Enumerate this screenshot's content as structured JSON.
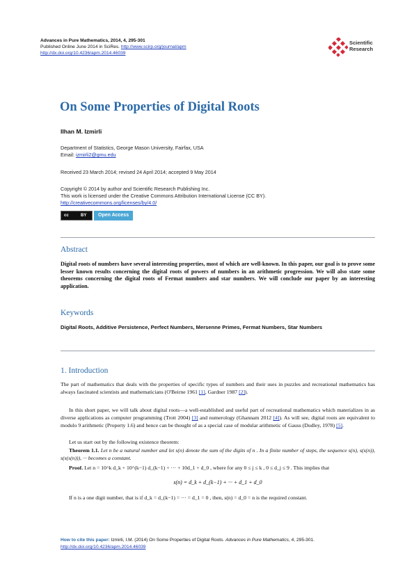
{
  "header": {
    "journal": "Advances in Pure Mathematics",
    "journal_ref": ", 2014, 4, 295-301",
    "published": "Published Online June 2014 in SciRes. ",
    "journal_url": "http://www.scirp.org/journal/apm",
    "doi": "http://dx.doi.org/10.4236/apm.2014.46039",
    "logo_text_1": "Scientific",
    "logo_text_2": "Research"
  },
  "article": {
    "title": "On Some Properties of Digital Roots",
    "author": "Ilhan M. Izmirli",
    "affiliation": "Department of Statistics, George Mason University, Fairfax, USA",
    "email_label": "Email: ",
    "email": "izmirli2@gmu.edu",
    "dates": "Received 23 March 2014; revised 24 April 2014; accepted 9 May 2014",
    "copyright_1": "Copyright © 2014 by author and Scientific Research Publishing Inc.",
    "copyright_2": "This work is licensed under the Creative Commons Attribution International License (CC BY).",
    "license_url": "http://creativecommons.org/licenses/by/4.0/",
    "cc_badge": "cc",
    "cc_by": "BY",
    "open_access": "Open Access"
  },
  "abstract": {
    "heading": "Abstract",
    "text": "Digital roots of numbers have several interesting properties, most of which are well-known. In this paper, our goal is to prove some lesser known results concerning the digital roots of powers of numbers in an arithmetic progression. We will also state some theorems concerning the digital roots of Fermat numbers and star numbers. We will conclude our paper by an interesting application."
  },
  "keywords": {
    "heading": "Keywords",
    "text": "Digital Roots, Additive Persistence, Perfect Numbers, Mersenne Primes, Fermat Numbers, Star Numbers"
  },
  "intro": {
    "heading": "1. Introduction",
    "p1a": "The part of mathematics that deals with the properties of specific types of numbers and their uses in puzzles and recreational mathematics has always fascinated scientists and mathematicians (O'Beirne 1961 ",
    "ref1": "[1]",
    "p1b": ", Gardner 1987 ",
    "ref2": "[2]",
    "p1c": ").",
    "p2a": "In this short paper, we will talk about digital roots—a well-established and useful part of recreational mathematics which materializes in as diverse applications as computer programming (Trott 2004) ",
    "ref3": "[3]",
    "p2b": " and numerology (Ghannam 2012 ",
    "ref4": "[4]",
    "p2c": "). As will see, digital roots are equivalent to modulo 9 arithmetic (Property 1.6) and hence can be thought of as a special case of modular arithmetic of Gauss (Dudley, 1978) ",
    "ref5": "[5]",
    "p2d": ".",
    "p3": "Let us start out by the following existence theorem:",
    "thm_label": "Theorem 1.1.",
    "thm_text": " Let  n  be a natural number and let  s(n)  denote the sum of the digits of  n . In a finite number of steps, the sequence  s(n), s(s(n)), s(s(s(n))), ···  becomes a constant.",
    "proof_label": "Proof.",
    "proof_text": " Let  n = 10^k d_k + 10^(k−1) d_(k−1) + ··· + 10d_1 + d_0 , where for any  0 ≤ j ≤ k ,  0 ≤ d_j ≤ 9 . This implies that",
    "equation": "s(n) = d_k + d_(k−1) + ··· + d_1 + d_0",
    "p4": "If  n  is a one digit number, that is if  d_k = d_(k−1) = ··· = d_1 = 0 , then,  s(n) = d_0 = n  is the required constant."
  },
  "footer": {
    "cite_label": "How to cite this paper: ",
    "cite_text": "Izmirli, I.M. (2014) On Some Properties of Digital Roots. ",
    "cite_journal": "Advances in Pure Mathematics",
    "cite_tail": ", 4, 295-301.",
    "doi": "http://dx.doi.org/10.4236/apm.2014.46039"
  },
  "colors": {
    "accent": "#2b6aa8",
    "link": "#1a3ab8",
    "logo": "#d32a3a",
    "open_access": "#4aa7d6"
  }
}
